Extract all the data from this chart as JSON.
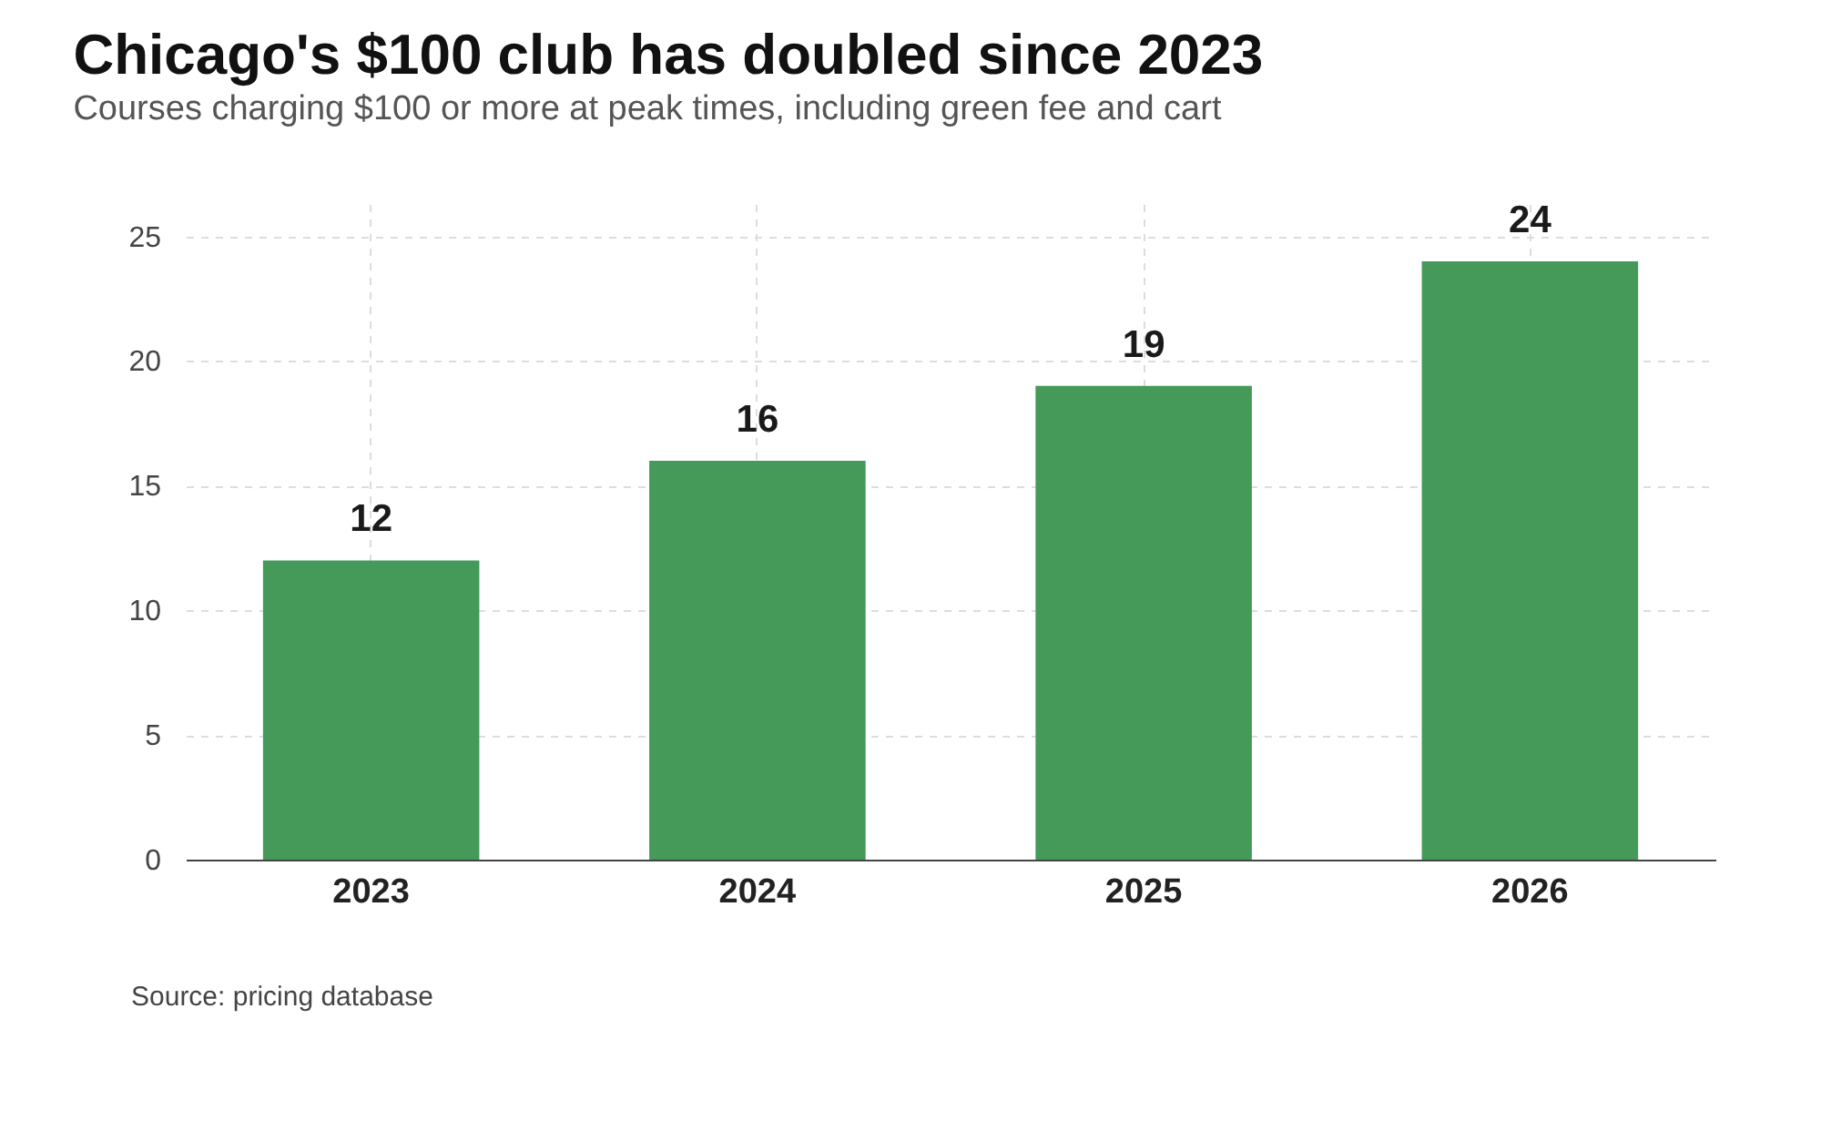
{
  "chart_data": {
    "type": "bar",
    "title": "Chicago's $100 club has doubled since 2023",
    "subtitle": "Courses charging $100 or more at peak times, including green fee and cart",
    "categories": [
      "2023",
      "2024",
      "2025",
      "2026"
    ],
    "values": [
      12,
      16,
      19,
      24
    ],
    "color": "#459a5a",
    "ylim": [
      0,
      26.3
    ],
    "yticks": [
      0,
      5,
      10,
      15,
      20,
      25
    ],
    "grid": true,
    "data_labels": true,
    "annotations": [
      "Source: pricing database"
    ]
  }
}
